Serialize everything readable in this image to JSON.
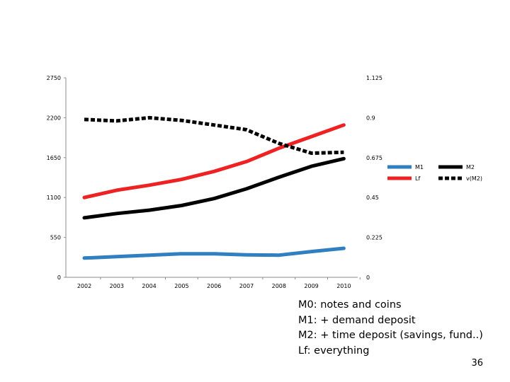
{
  "chart_data": {
    "type": "line",
    "categories": [
      "2002",
      "2003",
      "2004",
      "2005",
      "2006",
      "2007",
      "2008",
      "2009",
      "2010"
    ],
    "left_axis": {
      "ylim": [
        0,
        2750
      ],
      "ticks": [
        "0",
        "550",
        "1100",
        "1650",
        "2200",
        "2750"
      ]
    },
    "right_axis": {
      "ylim": [
        0,
        1.125
      ],
      "ticks": [
        "0",
        "0.225",
        "0.45",
        "0.675",
        "0.9",
        "1.125"
      ]
    },
    "series": [
      {
        "name": "M1",
        "axis": "left",
        "color": "#2f7fc1",
        "style": "solid",
        "values": [
          265,
          285,
          305,
          325,
          325,
          310,
          305,
          355,
          400
        ]
      },
      {
        "name": "M2",
        "axis": "left",
        "color": "#000000",
        "style": "solid",
        "values": [
          820,
          880,
          925,
          990,
          1085,
          1220,
          1380,
          1530,
          1635
        ]
      },
      {
        "name": "Lf",
        "axis": "left",
        "color": "#ee2222",
        "style": "solid",
        "values": [
          1100,
          1200,
          1270,
          1350,
          1460,
          1595,
          1780,
          1940,
          2100
        ]
      },
      {
        "name": "v(M2)",
        "axis": "right",
        "color": "#000000",
        "style": "dashed",
        "values": [
          0.89,
          0.882,
          0.9,
          0.885,
          0.859,
          0.832,
          0.755,
          0.7,
          0.705
        ]
      }
    ],
    "legend_position": "right",
    "grid": false
  },
  "notes": [
    "M0: notes and coins",
    "M1: + demand deposit",
    "M2: + time deposit (savings, fund..)",
    "Lf: everything"
  ],
  "page_number": "36"
}
